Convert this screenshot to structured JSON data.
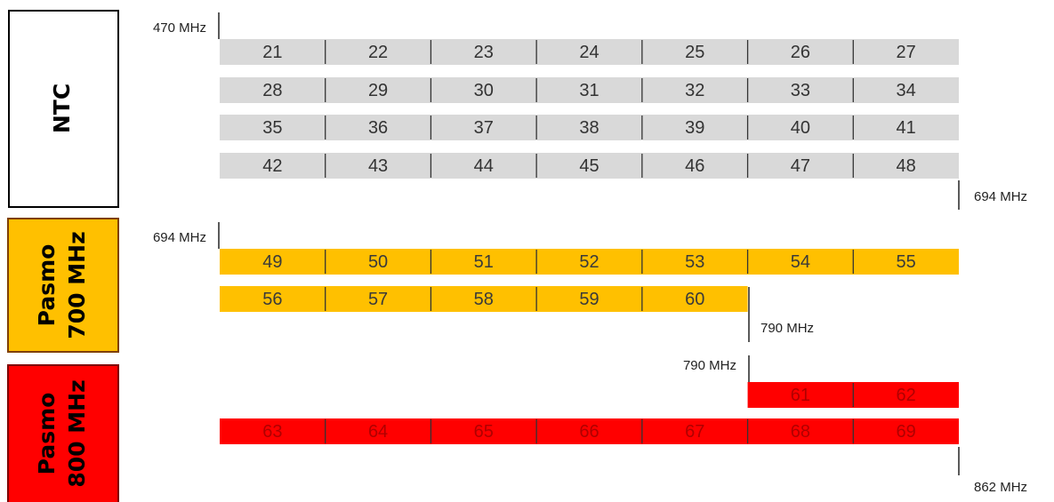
{
  "sections": [
    {
      "label_lines": [
        "NTC"
      ],
      "start_label": "470 MHz",
      "end_label": "694 MHz",
      "color": "#d9d9d9",
      "box_color": "#ffffff",
      "text_color": "#333333",
      "rows": [
        [
          21,
          22,
          23,
          24,
          25,
          26,
          27
        ],
        [
          28,
          29,
          30,
          31,
          32,
          33,
          34
        ],
        [
          35,
          36,
          37,
          38,
          39,
          40,
          41
        ],
        [
          42,
          43,
          44,
          45,
          46,
          47,
          48
        ]
      ]
    },
    {
      "label_lines": [
        "Pasmo",
        "700 MHz"
      ],
      "start_label": "694 MHz",
      "end_label": "790 MHz",
      "color": "#ffc000",
      "box_color": "#ffc000",
      "text_color": "#3a3a3a",
      "rows": [
        [
          49,
          50,
          51,
          52,
          53,
          54,
          55
        ],
        [
          56,
          57,
          58,
          59,
          60
        ]
      ]
    },
    {
      "label_lines": [
        "Pasmo",
        "800 MHz"
      ],
      "start_label": "790 MHz",
      "end_label": "862 MHz",
      "color": "#ff0000",
      "box_color": "#ff0000",
      "text_color": "#b00000",
      "rows": [
        [
          61,
          62
        ],
        [
          63,
          64,
          65,
          66,
          67,
          68,
          69
        ]
      ]
    }
  ]
}
